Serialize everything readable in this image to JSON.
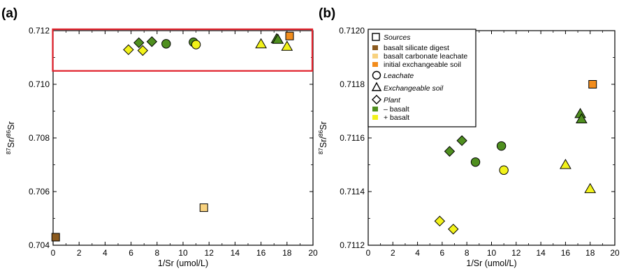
{
  "panels": {
    "a": {
      "label": "(a)"
    },
    "b": {
      "label": "(b)"
    }
  },
  "legend": {
    "sources": "Sources",
    "basalt_silicate": "basalt silicate digest",
    "basalt_carbonate": "basalt carbonate leachate",
    "initial_soil": "initial exchangeable soil",
    "leachate": "Leachate",
    "exch_soil": "Exchangeable soil",
    "plant": "Plant",
    "minus_basalt": "– basalt",
    "plus_basalt": "+ basalt"
  },
  "colors": {
    "basalt_silicate": "#8B5A1E",
    "basalt_carbonate": "#F8D27F",
    "initial_soil": "#F28C1C",
    "minus_basalt": "#4F8F1F",
    "plus_basalt": "#F2F21A",
    "highlight_box": "#E0202A"
  },
  "chart_data": [
    {
      "type": "scatter",
      "panel": "a",
      "xlabel": "1/Sr (umol/L)",
      "ylabel": "87Sr/86Sr",
      "ylabel_sup1": "87",
      "ylabel_mid": "Sr/",
      "ylabel_sup2": "86",
      "ylabel_end": "Sr",
      "xlim": [
        0,
        20
      ],
      "ylim": [
        0.704,
        0.712
      ],
      "xticks": [
        "0",
        "2",
        "4",
        "6",
        "8",
        "10",
        "12",
        "14",
        "16",
        "18",
        "20"
      ],
      "yticks": [
        "0.704",
        "0.706",
        "0.708",
        "0.710",
        "0.712"
      ],
      "highlight_region": {
        "x": [
          0,
          20
        ],
        "y": [
          0.7105,
          0.712
        ]
      },
      "series": [
        {
          "name": "basalt silicate digest",
          "marker": "square",
          "color_key": "basalt_silicate",
          "points": [
            [
              0.2,
              0.7043
            ]
          ]
        },
        {
          "name": "basalt carbonate leachate",
          "marker": "square",
          "color_key": "basalt_carbonate",
          "points": [
            [
              11.6,
              0.7054
            ]
          ]
        },
        {
          "name": "initial exchangeable soil",
          "marker": "square",
          "color_key": "initial_soil",
          "points": [
            [
              18.2,
              0.7118
            ]
          ]
        },
        {
          "name": "Leachate – basalt",
          "marker": "circle",
          "color_key": "minus_basalt",
          "points": [
            [
              8.7,
              0.71151
            ],
            [
              10.8,
              0.71157
            ]
          ]
        },
        {
          "name": "Leachate + basalt",
          "marker": "circle",
          "color_key": "plus_basalt",
          "points": [
            [
              11.0,
              0.71148
            ]
          ]
        },
        {
          "name": "Exchangeable soil – basalt",
          "marker": "triangle",
          "color_key": "minus_basalt",
          "points": [
            [
              17.2,
              0.71169
            ],
            [
              17.3,
              0.71167
            ]
          ]
        },
        {
          "name": "Exchangeable soil + basalt",
          "marker": "triangle",
          "color_key": "plus_basalt",
          "points": [
            [
              16.0,
              0.7115
            ],
            [
              18.0,
              0.71141
            ]
          ]
        },
        {
          "name": "Plant – basalt",
          "marker": "diamond",
          "color_key": "minus_basalt",
          "points": [
            [
              6.6,
              0.71155
            ],
            [
              7.6,
              0.71159
            ]
          ]
        },
        {
          "name": "Plant + basalt",
          "marker": "diamond",
          "color_key": "plus_basalt",
          "points": [
            [
              5.8,
              0.71129
            ],
            [
              6.9,
              0.71126
            ]
          ]
        }
      ]
    },
    {
      "type": "scatter",
      "panel": "b",
      "xlabel": "1/Sr (umol/L)",
      "ylabel": "87Sr/86Sr",
      "ylabel_sup1": "87",
      "ylabel_mid": "Sr/",
      "ylabel_sup2": "86",
      "ylabel_end": "Sr",
      "xlim": [
        0,
        20
      ],
      "ylim": [
        0.7112,
        0.712
      ],
      "xticks": [
        "0",
        "2",
        "4",
        "6",
        "8",
        "10",
        "12",
        "14",
        "16",
        "18",
        "20"
      ],
      "yticks": [
        "0.7112",
        "0.7114",
        "0.7116",
        "0.7118",
        "0.7120"
      ],
      "series": [
        {
          "name": "initial exchangeable soil",
          "marker": "square",
          "color_key": "initial_soil",
          "points": [
            [
              18.2,
              0.7118
            ]
          ]
        },
        {
          "name": "Leachate – basalt",
          "marker": "circle",
          "color_key": "minus_basalt",
          "points": [
            [
              8.7,
              0.71151
            ],
            [
              10.8,
              0.71157
            ]
          ]
        },
        {
          "name": "Leachate + basalt",
          "marker": "circle",
          "color_key": "plus_basalt",
          "points": [
            [
              11.0,
              0.71148
            ]
          ]
        },
        {
          "name": "Exchangeable soil – basalt",
          "marker": "triangle",
          "color_key": "minus_basalt",
          "points": [
            [
              17.2,
              0.71169
            ],
            [
              17.3,
              0.71167
            ]
          ]
        },
        {
          "name": "Exchangeable soil + basalt",
          "marker": "triangle",
          "color_key": "plus_basalt",
          "points": [
            [
              16.0,
              0.7115
            ],
            [
              18.0,
              0.71141
            ]
          ]
        },
        {
          "name": "Plant – basalt",
          "marker": "diamond",
          "color_key": "minus_basalt",
          "points": [
            [
              6.6,
              0.71155
            ],
            [
              7.6,
              0.71159
            ]
          ]
        },
        {
          "name": "Plant + basalt",
          "marker": "diamond",
          "color_key": "plus_basalt",
          "points": [
            [
              5.8,
              0.71129
            ],
            [
              6.9,
              0.71126
            ]
          ]
        }
      ]
    }
  ]
}
